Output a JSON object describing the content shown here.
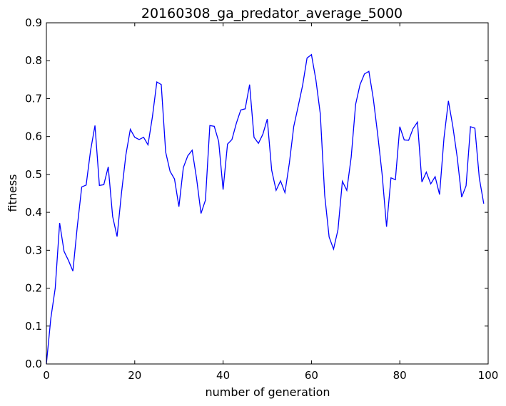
{
  "chart_data": {
    "type": "line",
    "title": "20160308_ga_predator_average_5000",
    "xlabel": "number of generation",
    "ylabel": "fitness",
    "xlim": [
      0,
      100
    ],
    "ylim": [
      0,
      0.9
    ],
    "xticks": [
      0,
      20,
      40,
      60,
      80,
      100
    ],
    "yticks": [
      0.0,
      0.1,
      0.2,
      0.3,
      0.4,
      0.5,
      0.6,
      0.7,
      0.8,
      0.9
    ],
    "grid": false,
    "series": [
      {
        "color": "#0000ff",
        "x": [
          0,
          1,
          2,
          3,
          4,
          5,
          6,
          7,
          8,
          9,
          10,
          11,
          12,
          13,
          14,
          15,
          16,
          17,
          18,
          19,
          20,
          21,
          22,
          23,
          24,
          25,
          26,
          27,
          28,
          29,
          30,
          31,
          32,
          33,
          34,
          35,
          36,
          37,
          38,
          39,
          40,
          41,
          42,
          43,
          44,
          45,
          46,
          47,
          48,
          49,
          50,
          51,
          52,
          53,
          54,
          55,
          56,
          57,
          58,
          59,
          60,
          61,
          62,
          63,
          64,
          65,
          66,
          67,
          68,
          69,
          70,
          71,
          72,
          73,
          74,
          75,
          76,
          77,
          78,
          79,
          80,
          81,
          82,
          83,
          84,
          85,
          86,
          87,
          88,
          89,
          90,
          91,
          92,
          93,
          94,
          95,
          96,
          97,
          98,
          99
        ],
        "y": [
          0.0,
          0.12,
          0.2,
          0.372,
          0.297,
          0.273,
          0.245,
          0.363,
          0.467,
          0.472,
          0.563,
          0.629,
          0.471,
          0.473,
          0.52,
          0.389,
          0.336,
          0.451,
          0.552,
          0.619,
          0.598,
          0.592,
          0.598,
          0.578,
          0.652,
          0.744,
          0.737,
          0.559,
          0.508,
          0.488,
          0.415,
          0.518,
          0.549,
          0.564,
          0.489,
          0.397,
          0.432,
          0.629,
          0.627,
          0.587,
          0.46,
          0.58,
          0.592,
          0.635,
          0.67,
          0.673,
          0.737,
          0.598,
          0.582,
          0.606,
          0.646,
          0.511,
          0.458,
          0.483,
          0.452,
          0.53,
          0.627,
          0.68,
          0.735,
          0.807,
          0.816,
          0.75,
          0.66,
          0.445,
          0.335,
          0.303,
          0.354,
          0.482,
          0.458,
          0.546,
          0.685,
          0.737,
          0.765,
          0.772,
          0.7,
          0.605,
          0.5,
          0.362,
          0.491,
          0.486,
          0.626,
          0.591,
          0.59,
          0.621,
          0.638,
          0.48,
          0.506,
          0.475,
          0.494,
          0.447,
          0.596,
          0.694,
          0.627,
          0.545,
          0.44,
          0.47,
          0.626,
          0.622,
          0.49,
          0.423
        ]
      }
    ]
  }
}
